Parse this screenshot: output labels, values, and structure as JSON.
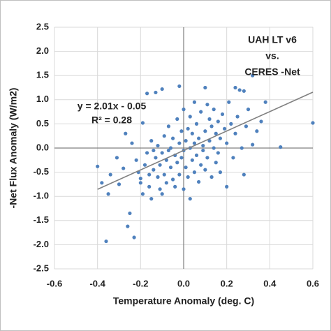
{
  "chart_data": {
    "type": "scatter",
    "x_label": "Temperature Anomaly (deg. C)",
    "y_label": "-Net Flux Anomaly (W/m2)",
    "annotations": [
      "UAH LT v6",
      "vs.",
      "CERES -Net"
    ],
    "equation": "y = 2.01x - 0.05",
    "r_squared": "R² = 0.28",
    "color": "#4f81bd",
    "grid": true,
    "xlim": [
      -0.6,
      0.6
    ],
    "ylim": [
      -2.5,
      2.5
    ],
    "xticks": [
      -0.6,
      -0.4,
      -0.2,
      {
        "value": 0,
        "label": "0.0"
      },
      0.2,
      0.4,
      0.6
    ],
    "yticks": [
      2.5,
      {
        "value": 2,
        "label": "2.0"
      },
      1.5,
      {
        "value": 1,
        "label": "1.0"
      },
      0.5,
      {
        "value": 0,
        "label": "0.0"
      },
      -0.5,
      {
        "value": -1,
        "label": "-1.0"
      },
      -1.5,
      {
        "value": -2,
        "label": "-2.0"
      },
      -2.5
    ],
    "trendline": {
      "color": "#808080",
      "x": [
        -0.4,
        0.6
      ],
      "y": [
        -0.854,
        1.156
      ]
    },
    "x": [
      -0.4,
      -0.38,
      -0.36,
      -0.35,
      -0.34,
      -0.31,
      -0.3,
      -0.28,
      -0.27,
      -0.26,
      -0.25,
      -0.24,
      -0.23,
      -0.22,
      -0.21,
      -0.2,
      -0.2,
      -0.19,
      -0.19,
      -0.18,
      -0.17,
      -0.17,
      -0.16,
      -0.16,
      -0.15,
      -0.15,
      -0.14,
      -0.14,
      -0.13,
      -0.13,
      -0.12,
      -0.12,
      -0.11,
      -0.11,
      -0.1,
      -0.1,
      -0.1,
      -0.09,
      -0.09,
      -0.08,
      -0.08,
      -0.07,
      -0.07,
      -0.06,
      -0.06,
      -0.05,
      -0.05,
      -0.04,
      -0.04,
      -0.03,
      -0.03,
      -0.02,
      -0.02,
      -0.02,
      -0.01,
      -0.01,
      0.0,
      0.0,
      0.0,
      0.01,
      0.01,
      0.02,
      0.02,
      0.03,
      0.03,
      0.03,
      0.04,
      0.04,
      0.05,
      0.05,
      0.05,
      0.06,
      0.06,
      0.07,
      0.07,
      0.08,
      0.08,
      0.09,
      0.09,
      0.1,
      0.1,
      0.1,
      0.11,
      0.11,
      0.12,
      0.12,
      0.13,
      0.13,
      0.14,
      0.14,
      0.15,
      0.15,
      0.16,
      0.16,
      0.17,
      0.17,
      0.18,
      0.19,
      0.2,
      0.2,
      0.21,
      0.22,
      0.23,
      0.24,
      0.24,
      0.25,
      0.26,
      0.27,
      0.28,
      0.28,
      0.29,
      0.3,
      0.32,
      0.32,
      0.34,
      0.36,
      0.38,
      0.45,
      0.6
    ],
    "values": [
      -0.38,
      -0.72,
      -1.93,
      -0.95,
      -0.55,
      -0.2,
      -0.75,
      -0.42,
      0.3,
      -1.62,
      -1.35,
      0.1,
      -1.85,
      -0.25,
      -0.5,
      -0.72,
      -0.63,
      -0.95,
      0.52,
      -0.35,
      1.13,
      -0.1,
      -0.8,
      -0.55,
      -1.05,
      0.15,
      -0.45,
      -0.05,
      1.15,
      -0.2,
      -0.6,
      0.05,
      -0.35,
      -0.85,
      1.22,
      -0.95,
      -0.1,
      0.25,
      -0.55,
      -0.72,
      -0.25,
      0.45,
      -0.05,
      0.0,
      -0.4,
      -0.65,
      0.2,
      -0.8,
      -0.15,
      0.6,
      -0.3,
      1.28,
      -0.55,
      0.1,
      -0.2,
      0.35,
      -0.85,
      -0.05,
      0.8,
      -0.4,
      0.15,
      0.4,
      -0.6,
      -1.05,
      0.0,
      0.65,
      -0.25,
      0.3,
      -0.5,
      0.95,
      0.1,
      -0.15,
      0.5,
      -0.7,
      0.2,
      -0.35,
      0.75,
      0.05,
      -0.05,
      1.25,
      0.35,
      -0.45,
      0.9,
      -0.2,
      0.6,
      0.15,
      -0.6,
      0.45,
      0.0,
      0.8,
      -0.3,
      0.3,
      0.55,
      -0.1,
      -0.5,
      0.2,
      0.7,
      0.4,
      -0.8,
      0.1,
      0.95,
      0.5,
      -0.2,
      1.25,
      0.3,
      0.65,
      1.2,
      0.0,
      -0.55,
      1.18,
      0.45,
      0.8,
      1.5,
      0.07,
      0.35,
      0.55,
      0.95,
      0.02,
      0.52
    ]
  }
}
